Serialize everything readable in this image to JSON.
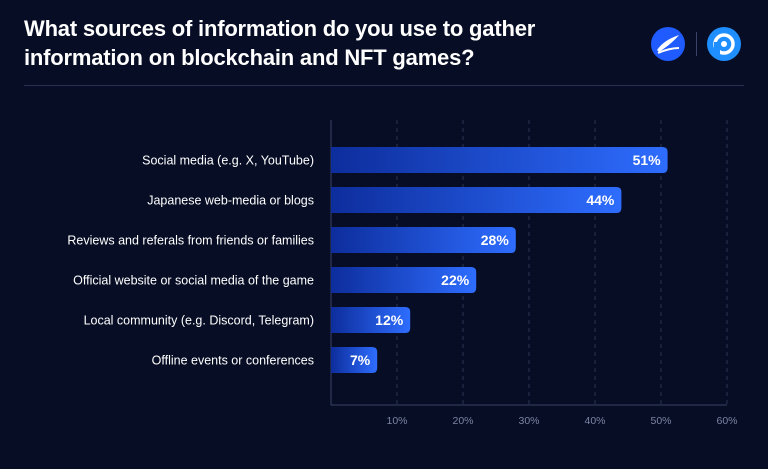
{
  "header": {
    "title_line1": "What sources of information do you use to gather",
    "title_line2": "information on blockchain and NFT games?"
  },
  "logos": [
    {
      "icon": "brand-logo-wave-icon",
      "color": "#1f5bff"
    },
    {
      "icon": "brand-logo-ring-icon",
      "color": "#1f8fff"
    }
  ],
  "chart_data": {
    "type": "bar",
    "orientation": "horizontal",
    "title": "What sources of information do you use to gather information on blockchain and NFT games?",
    "categories": [
      "Social media (e.g. X, YouTube)",
      "Japanese web-media or blogs",
      "Reviews and referals from friends or families",
      "Official website or social media of the game",
      "Local community (e.g. Discord, Telegram)",
      "Offline events or conferences"
    ],
    "values": [
      51,
      44,
      28,
      22,
      12,
      7
    ],
    "value_labels": [
      "51%",
      "44%",
      "28%",
      "22%",
      "12%",
      "7%"
    ],
    "xlim": [
      0,
      60
    ],
    "xticks": [
      10,
      20,
      30,
      40,
      50,
      60
    ],
    "xtick_labels": [
      "10%",
      "20%",
      "30%",
      "40%",
      "50%",
      "60%"
    ],
    "grid": "vertical dashed",
    "colors": {
      "bar_start": "#0d2d9c",
      "bar_end": "#2e6dff",
      "grid": "#2a3252"
    }
  }
}
